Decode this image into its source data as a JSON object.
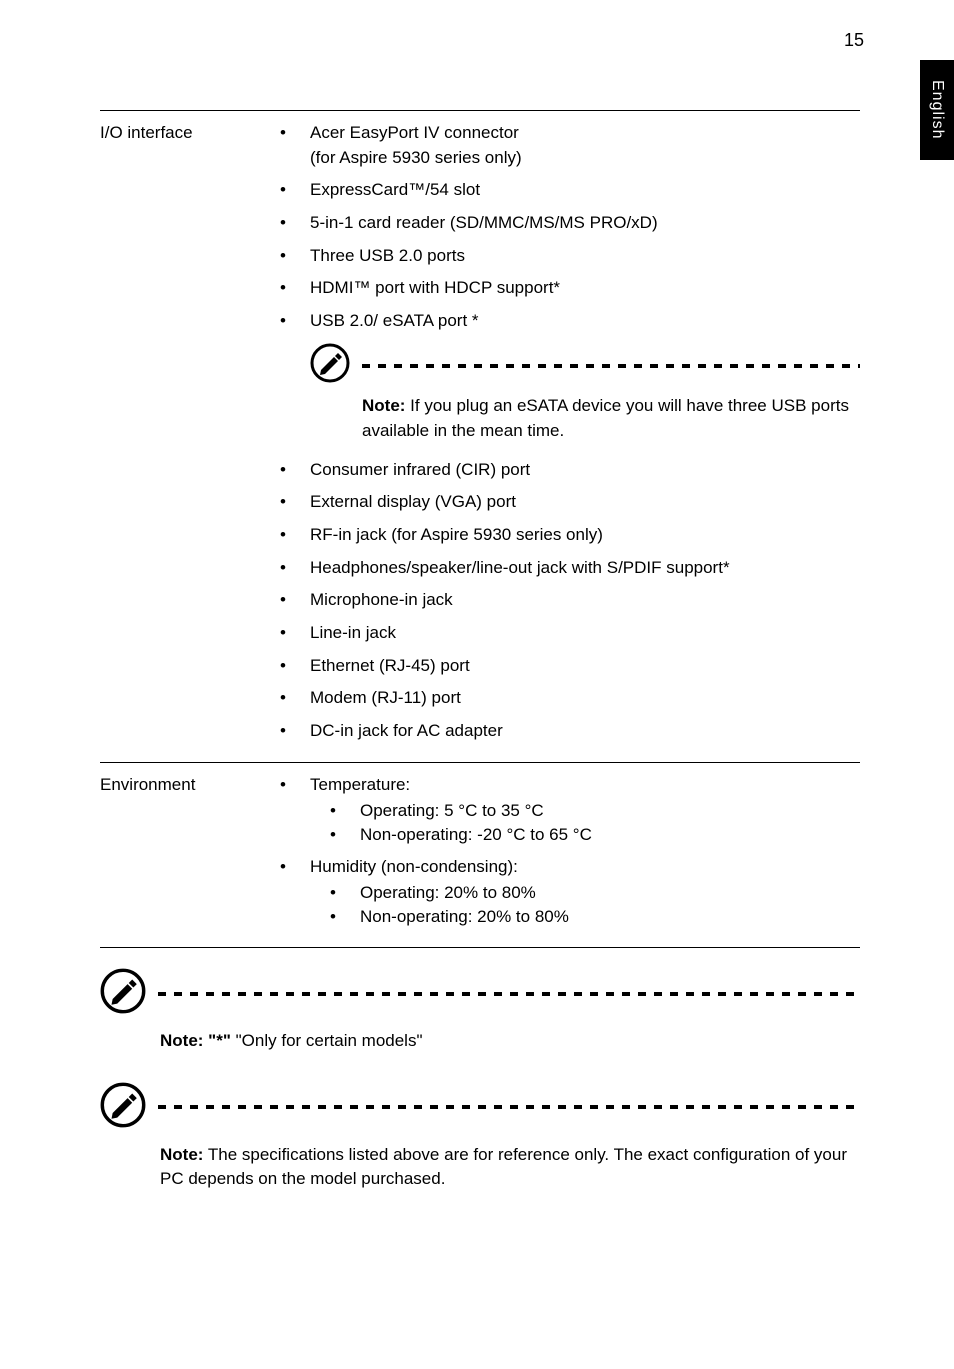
{
  "page_number": "15",
  "side_tab": "English",
  "colors": {
    "text": "#000000",
    "background": "#ffffff",
    "tab_bg": "#000000",
    "tab_text": "#ffffff",
    "dash": "#000000",
    "rule": "#000000"
  },
  "icon": {
    "stroke": "#000000",
    "fill": "#ffffff",
    "size": 40
  },
  "specs": [
    {
      "label": "I/O interface",
      "items": [
        {
          "text": "Acer EasyPort IV connector\n(for Aspire 5930 series only)"
        },
        {
          "text": "ExpressCard™/54 slot"
        },
        {
          "text": "5-in-1 card reader (SD/MMC/MS/MS PRO/xD)"
        },
        {
          "text": "Three USB 2.0 ports"
        },
        {
          "text": "HDMI™ port with HDCP support*"
        },
        {
          "text": "USB 2.0/ eSATA port *",
          "note_after": {
            "bold": "Note:",
            "rest": "  If you plug an eSATA device you will have three USB ports available in the mean time."
          }
        },
        {
          "text": "Consumer infrared (CIR) port"
        },
        {
          "text": "External display (VGA) port"
        },
        {
          "text": "RF-in jack (for Aspire 5930 series only)"
        },
        {
          "text": "Headphones/speaker/line-out jack with S/PDIF support*"
        },
        {
          "text": "Microphone-in jack"
        },
        {
          "text": "Line-in jack"
        },
        {
          "text": "Ethernet (RJ-45) port"
        },
        {
          "text": "Modem (RJ-11) port"
        },
        {
          "text": "DC-in jack for AC adapter"
        }
      ]
    },
    {
      "label": "Environment",
      "items": [
        {
          "text": "Temperature:",
          "sub": [
            "Operating: 5 °C to 35 °C",
            "Non-operating: -20 °C to 65 °C"
          ]
        },
        {
          "text": "Humidity (non-condensing):",
          "sub": [
            "Operating: 20% to 80%",
            "Non-operating: 20% to 80%"
          ]
        }
      ]
    }
  ],
  "footer_notes": [
    {
      "bold": "Note: \"*\"",
      "rest": " \"Only for certain models\""
    },
    {
      "bold": "Note:",
      "rest": " The specifications listed above are for reference only. The exact configuration of your PC depends on the model purchased."
    }
  ]
}
